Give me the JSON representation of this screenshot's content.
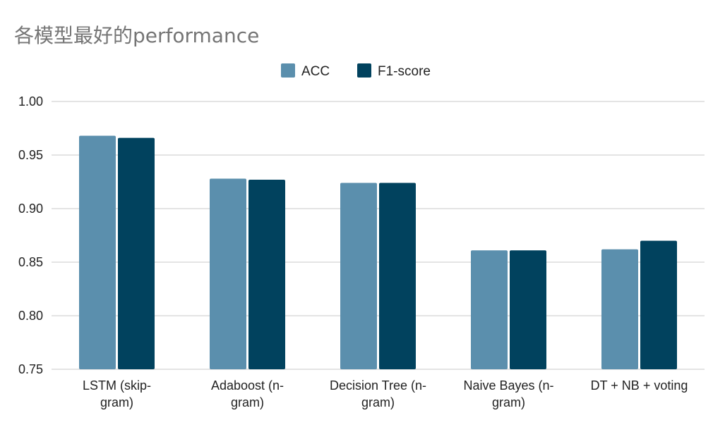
{
  "chart_data": {
    "type": "bar",
    "title": "各模型最好的performance",
    "xlabel": "",
    "ylabel": "",
    "categories": [
      [
        "LSTM (skip-",
        "gram)"
      ],
      [
        "Adaboost (n-",
        "gram)"
      ],
      [
        "Decision Tree (n-",
        "gram)"
      ],
      [
        "Naive Bayes (n-",
        "gram)"
      ],
      [
        "DT + NB + voting"
      ]
    ],
    "series": [
      {
        "name": "ACC",
        "color": "#5b8fad",
        "values": [
          0.968,
          0.928,
          0.924,
          0.861,
          0.862
        ]
      },
      {
        "name": "F1-score",
        "color": "#01425e",
        "values": [
          0.966,
          0.927,
          0.924,
          0.861,
          0.87
        ]
      }
    ],
    "ylim": [
      0.75,
      1.0
    ],
    "yticks": [
      "0.75",
      "0.80",
      "0.85",
      "0.90",
      "0.95",
      "1.00"
    ],
    "grid": true,
    "legend_position": "top-center"
  }
}
